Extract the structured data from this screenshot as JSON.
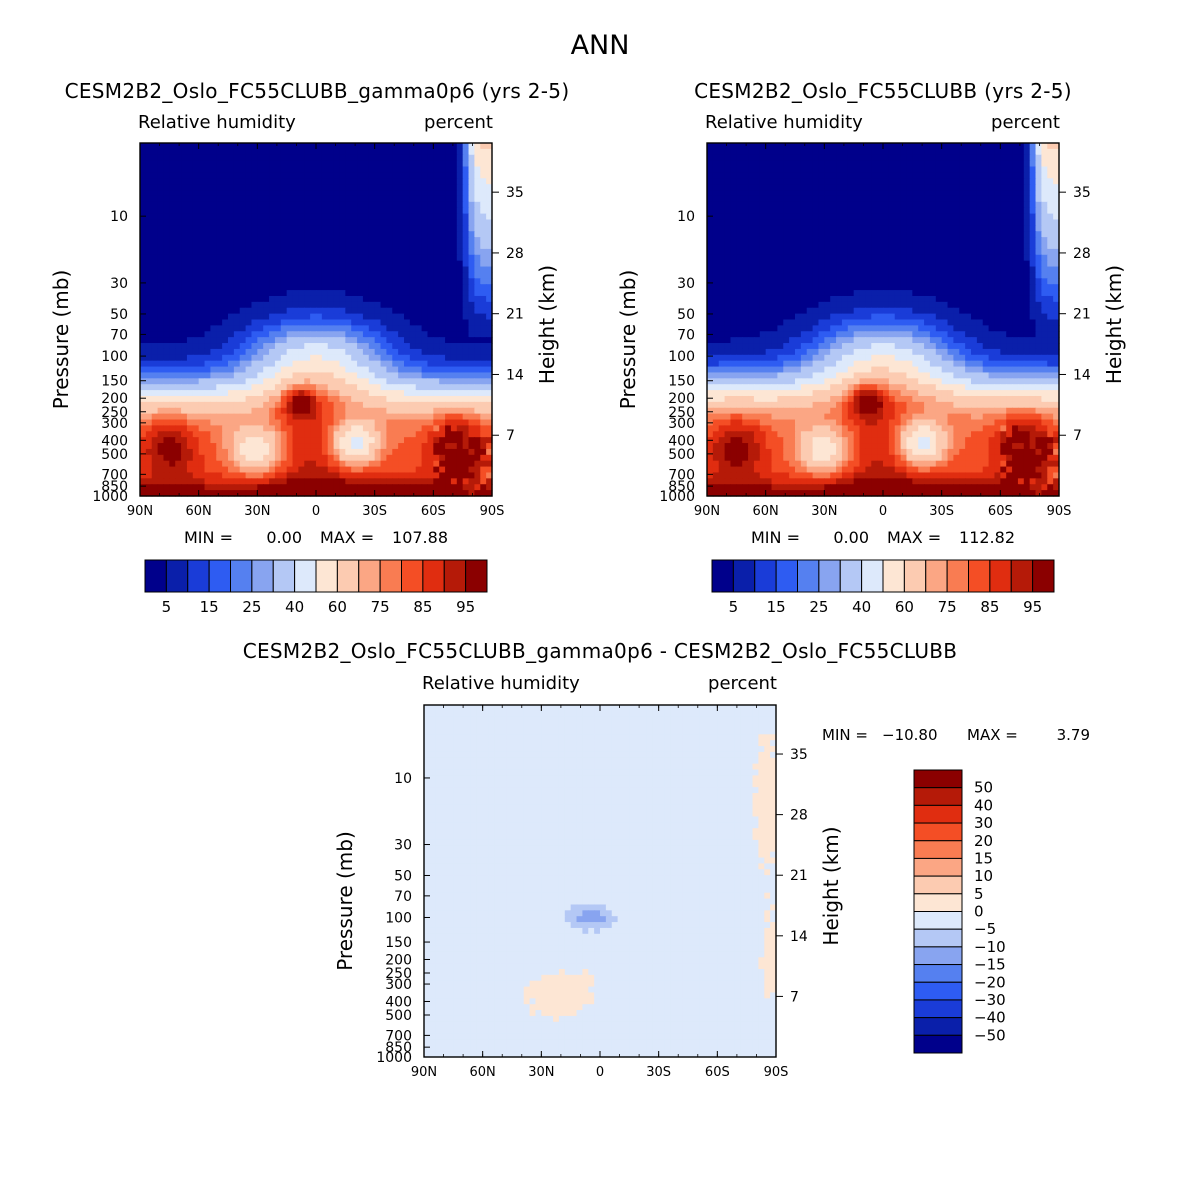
{
  "figure": {
    "title": "ANN"
  },
  "chart_data": [
    {
      "type": "heatmap",
      "id": "test",
      "title": "CESM2B2_Oslo_FC55CLUBB_gamma0p6 (yrs 2-5)",
      "subtitle_left": "Relative humidity",
      "subtitle_right": "percent",
      "ylabel": "Pressure (mb)",
      "ylabel_right": "Height (km)",
      "x_ticks": [
        "90N",
        "60N",
        "30N",
        "0",
        "30S",
        "60S",
        "90S"
      ],
      "x_range": [
        90,
        -90
      ],
      "y_ticks": [
        10,
        30,
        50,
        70,
        100,
        150,
        200,
        250,
        300,
        400,
        500,
        700,
        850,
        1000
      ],
      "y_range_mb": [
        3,
        1000
      ],
      "height_ticks_km": [
        7,
        14,
        21,
        28,
        35
      ],
      "min_label": "MIN =",
      "min_value": "0.00",
      "max_label": "MAX =",
      "max_value": "107.88",
      "colorbar": {
        "orientation": "horizontal",
        "tick_labels": [
          "5",
          "15",
          "25",
          "40",
          "60",
          "75",
          "85",
          "95"
        ],
        "colors": [
          "#00008b",
          "#0a1faa",
          "#1a3cd8",
          "#2e5cf2",
          "#5580f0",
          "#88a4f0",
          "#b4c8f5",
          "#dde9fb",
          "#fde6d4",
          "#fccbb1",
          "#fba684",
          "#f97c52",
          "#f44e25",
          "#e02d10",
          "#b51a08",
          "#8b0000"
        ]
      }
    },
    {
      "type": "heatmap",
      "id": "control",
      "title": "CESM2B2_Oslo_FC55CLUBB (yrs 2-5)",
      "subtitle_left": "Relative humidity",
      "subtitle_right": "percent",
      "ylabel": "Pressure (mb)",
      "ylabel_right": "Height (km)",
      "x_ticks": [
        "90N",
        "60N",
        "30N",
        "0",
        "30S",
        "60S",
        "90S"
      ],
      "x_range": [
        90,
        -90
      ],
      "y_ticks": [
        10,
        30,
        50,
        70,
        100,
        150,
        200,
        250,
        300,
        400,
        500,
        700,
        850,
        1000
      ],
      "y_range_mb": [
        3,
        1000
      ],
      "height_ticks_km": [
        7,
        14,
        21,
        28,
        35
      ],
      "min_label": "MIN =",
      "min_value": "0.00",
      "max_label": "MAX =",
      "max_value": "112.82",
      "colorbar": {
        "orientation": "horizontal",
        "tick_labels": [
          "5",
          "15",
          "25",
          "40",
          "60",
          "75",
          "85",
          "95"
        ],
        "colors": [
          "#00008b",
          "#0a1faa",
          "#1a3cd8",
          "#2e5cf2",
          "#5580f0",
          "#88a4f0",
          "#b4c8f5",
          "#dde9fb",
          "#fde6d4",
          "#fccbb1",
          "#fba684",
          "#f97c52",
          "#f44e25",
          "#e02d10",
          "#b51a08",
          "#8b0000"
        ]
      }
    },
    {
      "type": "heatmap",
      "id": "difference",
      "title": "CESM2B2_Oslo_FC55CLUBB_gamma0p6 - CESM2B2_Oslo_FC55CLUBB",
      "subtitle_left": "Relative humidity",
      "subtitle_right": "percent",
      "ylabel": "Pressure (mb)",
      "ylabel_right": "Height (km)",
      "x_ticks": [
        "90N",
        "60N",
        "30N",
        "0",
        "30S",
        "60S",
        "90S"
      ],
      "x_range": [
        90,
        -90
      ],
      "y_ticks": [
        10,
        30,
        50,
        70,
        100,
        150,
        200,
        250,
        300,
        400,
        500,
        700,
        850,
        1000
      ],
      "y_range_mb": [
        3,
        1000
      ],
      "height_ticks_km": [
        7,
        14,
        21,
        28,
        35
      ],
      "min_label": "MIN =",
      "min_value": "-10.80",
      "max_label": "MAX =",
      "max_value": "3.79",
      "colorbar": {
        "orientation": "vertical",
        "tick_labels": [
          "50",
          "40",
          "30",
          "20",
          "15",
          "10",
          "5",
          "0",
          "-5",
          "-10",
          "-15",
          "-20",
          "-30",
          "-40",
          "-50"
        ],
        "colors": [
          "#8b0000",
          "#b51a08",
          "#e02d10",
          "#f44e25",
          "#f97c52",
          "#fba684",
          "#fccbb1",
          "#fde6d4",
          "#dde9fb",
          "#b4c8f5",
          "#88a4f0",
          "#5580f0",
          "#2e5cf2",
          "#1a3cd8",
          "#0a1faa",
          "#00008b"
        ]
      }
    }
  ]
}
